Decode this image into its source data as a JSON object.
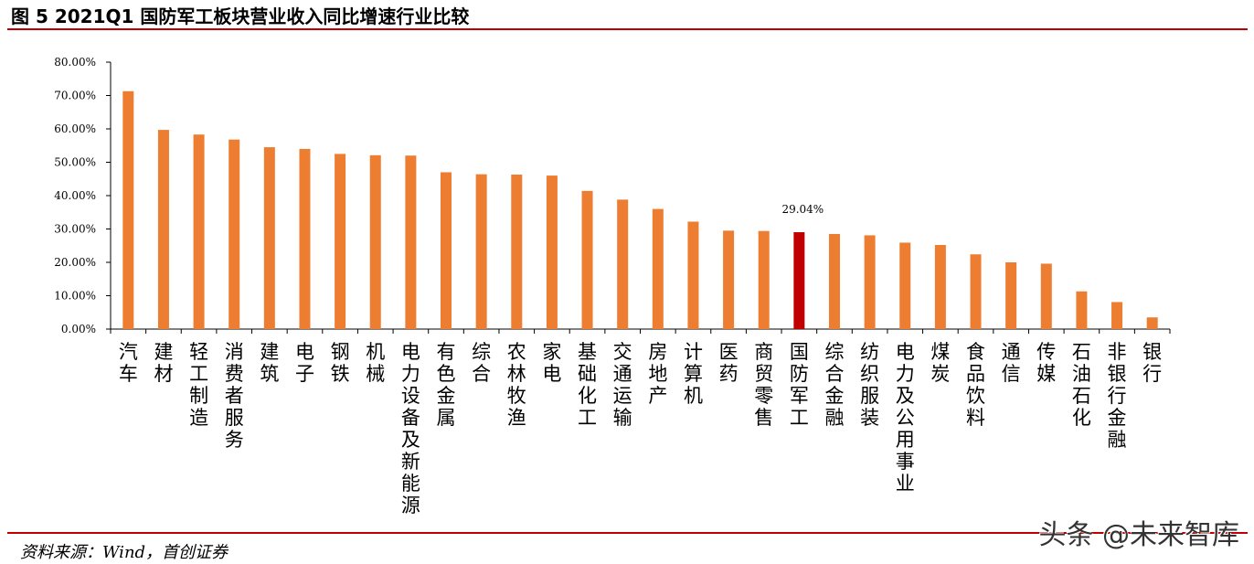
{
  "header": {
    "title": "图  5 2021Q1 国防军工板块营业收入同比增速行业比较"
  },
  "footer": {
    "source": "资料来源：Wind，首创证券",
    "watermark": "头条 @未来智库"
  },
  "colors": {
    "bar": "#ED7D31",
    "highlight": "#C00000",
    "rule": "#C00000",
    "axis": "#000000"
  },
  "chart_data": {
    "type": "bar",
    "title": "",
    "xlabel": "",
    "ylabel": "",
    "ylim": [
      0,
      80
    ],
    "yticks": [
      0,
      10,
      20,
      30,
      40,
      50,
      60,
      70,
      80
    ],
    "ytick_labels": [
      "0.00%",
      "10.00%",
      "20.00%",
      "30.00%",
      "40.00%",
      "50.00%",
      "60.00%",
      "70.00%",
      "80.00%"
    ],
    "grid": false,
    "categories": [
      "汽车",
      "建材",
      "轻工制造",
      "消费者服务",
      "建筑",
      "电子",
      "钢铁",
      "机械",
      "电力设备及新能源",
      "有色金属",
      "综合",
      "农林牧渔",
      "家电",
      "基础化工",
      "交通运输",
      "房地产",
      "计算机",
      "医药",
      "商贸零售",
      "国防军工",
      "综合金融",
      "纺织服装",
      "电力及公用事业",
      "煤炭",
      "食品饮料",
      "通信",
      "传媒",
      "石油石化",
      "非银行金融",
      "银行"
    ],
    "values": [
      71.3,
      59.7,
      58.3,
      56.8,
      54.5,
      54.0,
      52.5,
      52.1,
      52.0,
      47.0,
      46.4,
      46.3,
      46.0,
      41.4,
      38.8,
      36.0,
      32.2,
      29.5,
      29.4,
      29.04,
      28.5,
      28.1,
      25.9,
      25.2,
      22.4,
      20.0,
      19.6,
      11.3,
      8.1,
      3.5
    ],
    "highlight_index": 19,
    "data_labels": [
      {
        "index": 19,
        "text": "29.04%"
      }
    ]
  }
}
